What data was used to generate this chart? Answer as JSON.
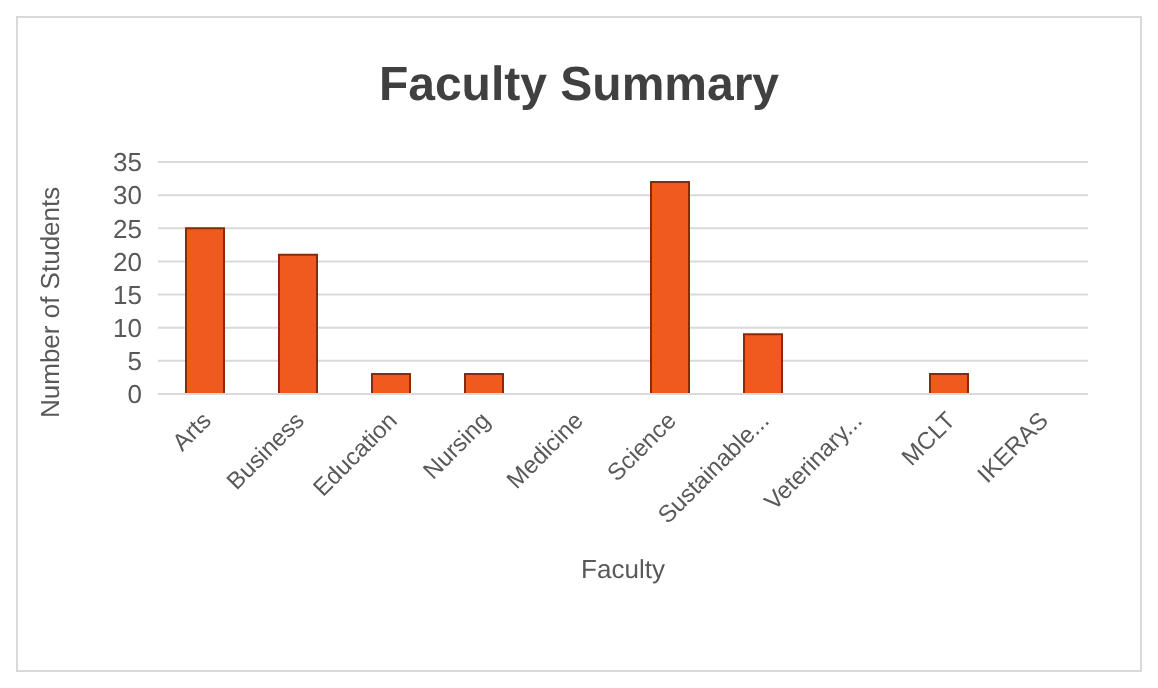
{
  "chart_data": {
    "type": "bar",
    "title": "Faculty Summary",
    "xlabel": "Faculty",
    "ylabel": "Number of Students",
    "categories": [
      "Arts",
      "Business",
      "Education",
      "Nursing",
      "Medicine",
      "Science",
      "Sustainable...",
      "Veterinary...",
      "MCLT",
      "IKERAS"
    ],
    "values": [
      25,
      21,
      3,
      3,
      0,
      32,
      9,
      0,
      3,
      0
    ],
    "color": "#f05a1e",
    "ylim": [
      0,
      35
    ],
    "yticks": [
      0,
      5,
      10,
      15,
      20,
      25,
      30,
      35
    ],
    "grid": "y"
  }
}
